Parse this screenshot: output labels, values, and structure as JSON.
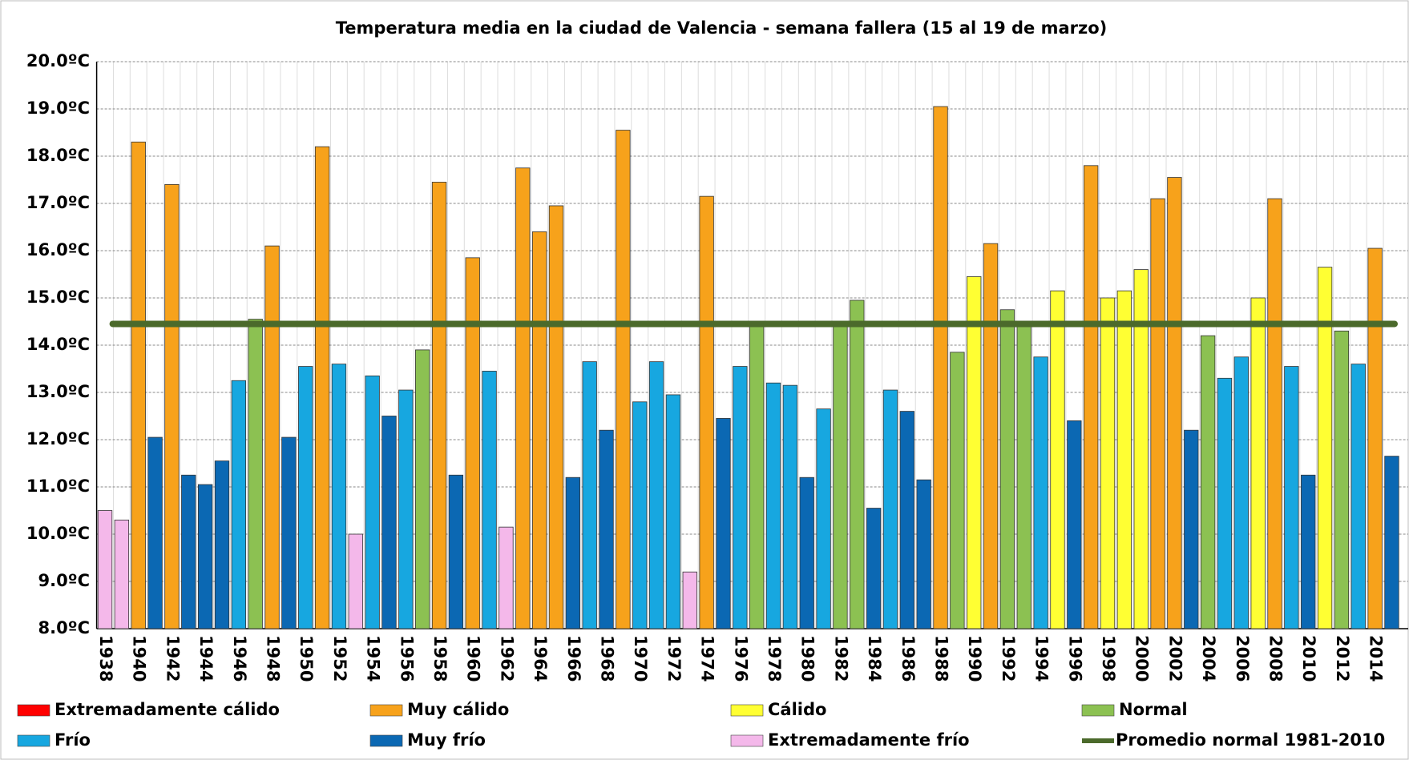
{
  "chart_data": {
    "type": "bar",
    "title": "Temperatura media en la ciudad de Valencia - semana fallera (15 al 19 de marzo)",
    "categories": [
      "1938",
      null,
      "1940",
      null,
      "1942",
      null,
      "1944",
      null,
      "1946",
      null,
      "1948",
      null,
      "1950",
      null,
      "1952",
      null,
      "1954",
      null,
      "1956",
      null,
      "1958",
      null,
      "1960",
      null,
      "1962",
      null,
      "1964",
      null,
      "1966",
      null,
      "1968",
      null,
      "1970",
      null,
      "1972",
      null,
      "1974",
      null,
      "1976",
      null,
      "1978",
      null,
      "1980",
      null,
      "1982",
      null,
      "1984",
      null,
      "1986",
      null,
      "1988",
      null,
      "1990",
      null,
      "1992",
      null,
      "1994",
      null,
      "1996",
      null,
      "1998",
      null,
      "2000",
      null,
      "2002",
      null,
      "2004",
      null,
      "2006",
      null,
      "2008",
      null,
      "2010",
      null,
      "2012",
      null,
      "2014",
      null
    ],
    "values": [
      10.5,
      10.3,
      18.3,
      12.05,
      17.4,
      11.25,
      11.05,
      11.55,
      13.25,
      14.55,
      16.1,
      12.05,
      13.55,
      18.2,
      13.6,
      10.0,
      13.35,
      12.5,
      13.05,
      13.9,
      17.45,
      11.25,
      15.85,
      13.45,
      10.15,
      17.75,
      16.4,
      16.95,
      11.2,
      13.65,
      12.2,
      18.55,
      12.8,
      13.65,
      12.95,
      9.2,
      17.15,
      12.45,
      13.55,
      14.5,
      13.2,
      13.15,
      11.2,
      12.65,
      14.5,
      14.95,
      10.55,
      13.05,
      12.6,
      11.15,
      19.05,
      13.85,
      15.45,
      16.15,
      14.75,
      14.5,
      13.75,
      15.15,
      12.4,
      17.8,
      15.0,
      15.15,
      15.6,
      17.1,
      17.55,
      12.2,
      14.2,
      13.3,
      13.75,
      15.0,
      17.1,
      13.55,
      11.25,
      15.65,
      14.3,
      13.6,
      16.05,
      11.65
    ],
    "classes": [
      6,
      6,
      1,
      5,
      1,
      5,
      5,
      5,
      4,
      3,
      1,
      5,
      4,
      1,
      4,
      6,
      4,
      5,
      4,
      3,
      1,
      5,
      1,
      4,
      6,
      1,
      1,
      1,
      5,
      4,
      5,
      1,
      4,
      4,
      4,
      6,
      1,
      5,
      4,
      3,
      4,
      4,
      5,
      4,
      3,
      3,
      5,
      4,
      5,
      5,
      1,
      3,
      2,
      1,
      3,
      3,
      4,
      2,
      5,
      1,
      2,
      2,
      2,
      1,
      1,
      5,
      3,
      4,
      4,
      2,
      1,
      4,
      5,
      2,
      3,
      4,
      1,
      5
    ],
    "legend": [
      {
        "name": "Extremadamente cálido",
        "color": "#ff0000"
      },
      {
        "name": "Muy cálido",
        "color": "#f7a21b"
      },
      {
        "name": "Cálido",
        "color": "#ffff33"
      },
      {
        "name": "Normal",
        "color": "#8cc152"
      },
      {
        "name": "Frío",
        "color": "#17a7e0"
      },
      {
        "name": "Muy frío",
        "color": "#0b68b3"
      },
      {
        "name": "Extremadamente frío",
        "color": "#f4b8ea"
      }
    ],
    "reference_line": {
      "name": "Promedio normal 1981-2010",
      "value": 14.45,
      "color": "#4b6a2b"
    },
    "ylim": [
      8,
      20
    ],
    "yticks": [
      {
        "value": 8,
        "label": "8.0ºC"
      },
      {
        "value": 9,
        "label": "9.0ºC"
      },
      {
        "value": 10,
        "label": "10.0ºC"
      },
      {
        "value": 11,
        "label": "11.0ºC"
      },
      {
        "value": 12,
        "label": "12.0ºC"
      },
      {
        "value": 13,
        "label": "13.0ºC"
      },
      {
        "value": 14,
        "label": "14.0ºC"
      },
      {
        "value": 15,
        "label": "15.0ºC"
      },
      {
        "value": 16,
        "label": "16.0ºC"
      },
      {
        "value": 17,
        "label": "17.0ºC"
      },
      {
        "value": 18,
        "label": "18.0ºC"
      },
      {
        "value": 19,
        "label": "19.0ºC"
      },
      {
        "value": 20,
        "label": "20.0ºC"
      }
    ],
    "grid": true
  }
}
